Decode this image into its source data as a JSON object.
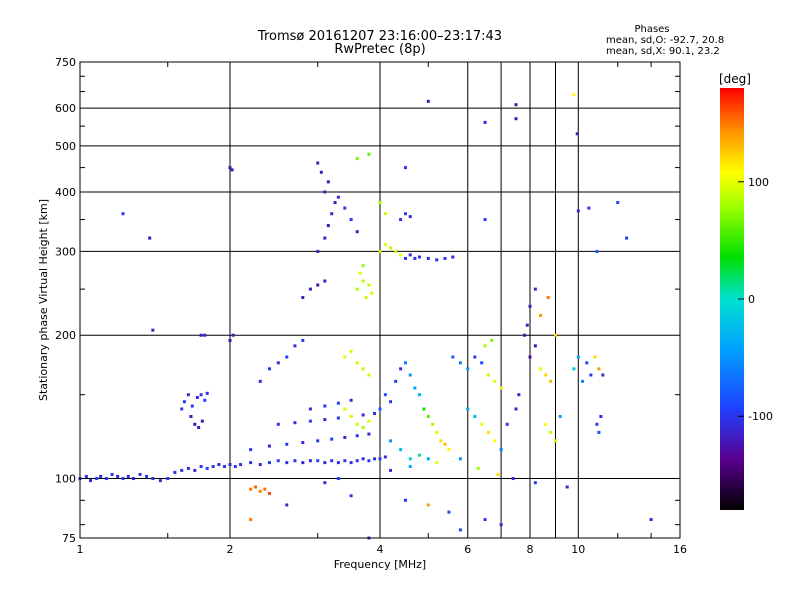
{
  "chart_data": {
    "type": "scatter",
    "title": "Tromsø 20161207 23:16:00–23:17:43",
    "subtitle": "RwPretec (8p)",
    "xlabel": "Frequency [MHz]",
    "ylabel": "Stationary phase Virtual Height [km]",
    "x_scale": "log",
    "y_scale": "log",
    "xlim": [
      1,
      16
    ],
    "ylim": [
      75,
      750
    ],
    "x_ticks": [
      1,
      2,
      4,
      6,
      8,
      10,
      16
    ],
    "x_tick_labels": [
      "1",
      "2",
      "4",
      "6",
      "8",
      "10",
      "16"
    ],
    "y_ticks": [
      75,
      100,
      200,
      300,
      400,
      500,
      600,
      750
    ],
    "y_tick_labels": [
      "75",
      "100",
      "200",
      "300",
      "400",
      "500",
      "600",
      "750"
    ],
    "grid": true,
    "phases_box": {
      "title": "Phases",
      "line1": "mean, sd,O: -92.7, 20.8",
      "line2": "mean, sd,X:  90.1, 23.2"
    },
    "colorbar": {
      "label": "[deg]",
      "range": [
        -180,
        180
      ],
      "ticks": [
        100,
        0,
        -100
      ],
      "tick_labels": [
        "100",
        "0",
        "-100"
      ]
    },
    "points": [
      {
        "x": 1.0,
        "y": 100,
        "c": -105
      },
      {
        "x": 1.03,
        "y": 101,
        "c": -100
      },
      {
        "x": 1.05,
        "y": 99,
        "c": -110
      },
      {
        "x": 1.08,
        "y": 100,
        "c": -95
      },
      {
        "x": 1.1,
        "y": 101,
        "c": -108
      },
      {
        "x": 1.13,
        "y": 100,
        "c": -100
      },
      {
        "x": 1.16,
        "y": 102,
        "c": -104
      },
      {
        "x": 1.19,
        "y": 101,
        "c": -112
      },
      {
        "x": 1.22,
        "y": 100,
        "c": -98
      },
      {
        "x": 1.25,
        "y": 101,
        "c": -102
      },
      {
        "x": 1.28,
        "y": 100,
        "c": -115
      },
      {
        "x": 1.32,
        "y": 102,
        "c": -100
      },
      {
        "x": 1.36,
        "y": 101,
        "c": -95
      },
      {
        "x": 1.4,
        "y": 100,
        "c": -106
      },
      {
        "x": 1.45,
        "y": 99,
        "c": -110
      },
      {
        "x": 1.5,
        "y": 100,
        "c": -100
      },
      {
        "x": 1.55,
        "y": 103,
        "c": -104
      },
      {
        "x": 1.6,
        "y": 104,
        "c": -98
      },
      {
        "x": 1.65,
        "y": 105,
        "c": -107
      },
      {
        "x": 1.7,
        "y": 104,
        "c": -112
      },
      {
        "x": 1.75,
        "y": 106,
        "c": -100
      },
      {
        "x": 1.8,
        "y": 105,
        "c": -95
      },
      {
        "x": 1.85,
        "y": 106,
        "c": -103
      },
      {
        "x": 1.9,
        "y": 107,
        "c": -110
      },
      {
        "x": 1.95,
        "y": 106,
        "c": -100
      },
      {
        "x": 2.0,
        "y": 107,
        "c": -105
      },
      {
        "x": 2.05,
        "y": 106,
        "c": -98
      },
      {
        "x": 2.1,
        "y": 107,
        "c": -108
      },
      {
        "x": 2.2,
        "y": 108,
        "c": -102
      },
      {
        "x": 2.3,
        "y": 107,
        "c": -110
      },
      {
        "x": 2.4,
        "y": 108,
        "c": -100
      },
      {
        "x": 2.5,
        "y": 109,
        "c": -95
      },
      {
        "x": 2.6,
        "y": 108,
        "c": -106
      },
      {
        "x": 2.7,
        "y": 109,
        "c": -100
      },
      {
        "x": 2.8,
        "y": 108,
        "c": -112
      },
      {
        "x": 2.9,
        "y": 109,
        "c": -104
      },
      {
        "x": 3.0,
        "y": 109,
        "c": -98
      },
      {
        "x": 3.1,
        "y": 108,
        "c": -110
      },
      {
        "x": 3.2,
        "y": 109,
        "c": -100
      },
      {
        "x": 3.3,
        "y": 108,
        "c": -105
      },
      {
        "x": 3.4,
        "y": 109,
        "c": -95
      },
      {
        "x": 3.5,
        "y": 108,
        "c": -108
      },
      {
        "x": 3.6,
        "y": 109,
        "c": -102
      },
      {
        "x": 3.7,
        "y": 110,
        "c": -110
      },
      {
        "x": 3.8,
        "y": 109,
        "c": -100
      },
      {
        "x": 3.9,
        "y": 110,
        "c": -106
      },
      {
        "x": 4.0,
        "y": 110,
        "c": -98
      },
      {
        "x": 4.1,
        "y": 111,
        "c": -104
      },
      {
        "x": 2.2,
        "y": 115,
        "c": -100
      },
      {
        "x": 2.4,
        "y": 117,
        "c": -105
      },
      {
        "x": 2.6,
        "y": 118,
        "c": -98
      },
      {
        "x": 2.8,
        "y": 119,
        "c": -110
      },
      {
        "x": 3.0,
        "y": 120,
        "c": -100
      },
      {
        "x": 3.2,
        "y": 121,
        "c": -95
      },
      {
        "x": 3.4,
        "y": 122,
        "c": -108
      },
      {
        "x": 3.6,
        "y": 123,
        "c": -102
      },
      {
        "x": 3.8,
        "y": 124,
        "c": -110
      },
      {
        "x": 2.5,
        "y": 130,
        "c": -100
      },
      {
        "x": 2.7,
        "y": 131,
        "c": -105
      },
      {
        "x": 2.9,
        "y": 132,
        "c": -98
      },
      {
        "x": 3.1,
        "y": 133,
        "c": -110
      },
      {
        "x": 3.3,
        "y": 134,
        "c": -100
      },
      {
        "x": 3.5,
        "y": 135,
        "c": -95
      },
      {
        "x": 3.7,
        "y": 136,
        "c": -108
      },
      {
        "x": 3.9,
        "y": 137,
        "c": -102
      },
      {
        "x": 2.9,
        "y": 140,
        "c": -104
      },
      {
        "x": 3.1,
        "y": 142,
        "c": -100
      },
      {
        "x": 3.3,
        "y": 144,
        "c": -98
      },
      {
        "x": 3.5,
        "y": 146,
        "c": -106
      },
      {
        "x": 1.6,
        "y": 140,
        "c": -100
      },
      {
        "x": 1.62,
        "y": 145,
        "c": -95
      },
      {
        "x": 1.65,
        "y": 150,
        "c": -105
      },
      {
        "x": 1.68,
        "y": 142,
        "c": -98
      },
      {
        "x": 1.72,
        "y": 148,
        "c": -110
      },
      {
        "x": 1.75,
        "y": 150,
        "c": -100
      },
      {
        "x": 1.78,
        "y": 146,
        "c": -95
      },
      {
        "x": 1.8,
        "y": 151,
        "c": -108
      },
      {
        "x": 1.67,
        "y": 135,
        "c": -120
      },
      {
        "x": 1.7,
        "y": 130,
        "c": -125
      },
      {
        "x": 1.73,
        "y": 128,
        "c": -118
      },
      {
        "x": 1.76,
        "y": 132,
        "c": -122
      },
      {
        "x": 1.75,
        "y": 200,
        "c": -120
      },
      {
        "x": 1.78,
        "y": 200,
        "c": -118
      },
      {
        "x": 2.0,
        "y": 195,
        "c": -125
      },
      {
        "x": 2.03,
        "y": 200,
        "c": -120
      },
      {
        "x": 2.0,
        "y": 450,
        "c": -125
      },
      {
        "x": 2.02,
        "y": 445,
        "c": -120
      },
      {
        "x": 1.22,
        "y": 360,
        "c": -100
      },
      {
        "x": 1.38,
        "y": 320,
        "c": -125
      },
      {
        "x": 1.4,
        "y": 205,
        "c": -120
      },
      {
        "x": 2.3,
        "y": 160,
        "c": -105
      },
      {
        "x": 2.4,
        "y": 170,
        "c": -100
      },
      {
        "x": 2.5,
        "y": 175,
        "c": -110
      },
      {
        "x": 2.6,
        "y": 180,
        "c": -95
      },
      {
        "x": 2.7,
        "y": 190,
        "c": -105
      },
      {
        "x": 2.8,
        "y": 195,
        "c": -100
      },
      {
        "x": 2.8,
        "y": 240,
        "c": -120
      },
      {
        "x": 2.9,
        "y": 250,
        "c": -115
      },
      {
        "x": 3.0,
        "y": 255,
        "c": -125
      },
      {
        "x": 3.1,
        "y": 260,
        "c": -120
      },
      {
        "x": 3.0,
        "y": 300,
        "c": -118
      },
      {
        "x": 3.1,
        "y": 320,
        "c": -122
      },
      {
        "x": 3.15,
        "y": 340,
        "c": -125
      },
      {
        "x": 3.2,
        "y": 360,
        "c": -110
      },
      {
        "x": 3.25,
        "y": 380,
        "c": -120
      },
      {
        "x": 3.1,
        "y": 400,
        "c": -115
      },
      {
        "x": 3.15,
        "y": 420,
        "c": -125
      },
      {
        "x": 3.05,
        "y": 440,
        "c": -120
      },
      {
        "x": 3.0,
        "y": 460,
        "c": -118
      },
      {
        "x": 3.3,
        "y": 390,
        "c": -110
      },
      {
        "x": 3.4,
        "y": 370,
        "c": -105
      },
      {
        "x": 3.5,
        "y": 350,
        "c": -100
      },
      {
        "x": 3.6,
        "y": 330,
        "c": -120
      },
      {
        "x": 3.6,
        "y": 250,
        "c": 80
      },
      {
        "x": 3.7,
        "y": 260,
        "c": 85
      },
      {
        "x": 3.8,
        "y": 255,
        "c": 90
      },
      {
        "x": 3.65,
        "y": 270,
        "c": 95
      },
      {
        "x": 3.75,
        "y": 240,
        "c": 88
      },
      {
        "x": 3.85,
        "y": 245,
        "c": 92
      },
      {
        "x": 3.7,
        "y": 280,
        "c": 75
      },
      {
        "x": 4.0,
        "y": 300,
        "c": 90
      },
      {
        "x": 4.1,
        "y": 310,
        "c": 95
      },
      {
        "x": 4.2,
        "y": 305,
        "c": 85
      },
      {
        "x": 4.3,
        "y": 300,
        "c": 90
      },
      {
        "x": 4.4,
        "y": 295,
        "c": 100
      },
      {
        "x": 4.5,
        "y": 290,
        "c": -100
      },
      {
        "x": 4.6,
        "y": 295,
        "c": -110
      },
      {
        "x": 4.7,
        "y": 290,
        "c": -105
      },
      {
        "x": 4.8,
        "y": 292,
        "c": -100
      },
      {
        "x": 5.0,
        "y": 290,
        "c": -110
      },
      {
        "x": 5.2,
        "y": 288,
        "c": -105
      },
      {
        "x": 5.4,
        "y": 290,
        "c": -100
      },
      {
        "x": 5.6,
        "y": 292,
        "c": -108
      },
      {
        "x": 4.4,
        "y": 350,
        "c": -105
      },
      {
        "x": 4.5,
        "y": 360,
        "c": -100
      },
      {
        "x": 4.6,
        "y": 355,
        "c": -110
      },
      {
        "x": 4.5,
        "y": 450,
        "c": -100
      },
      {
        "x": 3.8,
        "y": 480,
        "c": 60
      },
      {
        "x": 3.6,
        "y": 470,
        "c": 70
      },
      {
        "x": 4.0,
        "y": 380,
        "c": 80
      },
      {
        "x": 4.1,
        "y": 360,
        "c": 90
      },
      {
        "x": 3.4,
        "y": 180,
        "c": 100
      },
      {
        "x": 3.5,
        "y": 185,
        "c": 95
      },
      {
        "x": 3.6,
        "y": 175,
        "c": 90
      },
      {
        "x": 3.7,
        "y": 170,
        "c": 85
      },
      {
        "x": 3.8,
        "y": 165,
        "c": 92
      },
      {
        "x": 3.4,
        "y": 140,
        "c": 95
      },
      {
        "x": 3.5,
        "y": 135,
        "c": 100
      },
      {
        "x": 3.6,
        "y": 130,
        "c": 90
      },
      {
        "x": 3.7,
        "y": 128,
        "c": 85
      },
      {
        "x": 3.8,
        "y": 132,
        "c": 95
      },
      {
        "x": 4.0,
        "y": 140,
        "c": -80
      },
      {
        "x": 4.1,
        "y": 150,
        "c": -90
      },
      {
        "x": 4.2,
        "y": 145,
        "c": -100
      },
      {
        "x": 4.3,
        "y": 160,
        "c": -95
      },
      {
        "x": 4.4,
        "y": 170,
        "c": -110
      },
      {
        "x": 4.5,
        "y": 175,
        "c": -60
      },
      {
        "x": 4.6,
        "y": 165,
        "c": -50
      },
      {
        "x": 4.7,
        "y": 155,
        "c": -40
      },
      {
        "x": 4.8,
        "y": 150,
        "c": -30
      },
      {
        "x": 4.9,
        "y": 140,
        "c": 40
      },
      {
        "x": 5.0,
        "y": 135,
        "c": 60
      },
      {
        "x": 5.1,
        "y": 130,
        "c": 80
      },
      {
        "x": 5.2,
        "y": 125,
        "c": 100
      },
      {
        "x": 5.3,
        "y": 120,
        "c": 120
      },
      {
        "x": 5.4,
        "y": 118,
        "c": 130
      },
      {
        "x": 5.5,
        "y": 115,
        "c": 110
      },
      {
        "x": 4.2,
        "y": 120,
        "c": -50
      },
      {
        "x": 4.4,
        "y": 115,
        "c": -30
      },
      {
        "x": 4.6,
        "y": 110,
        "c": -10
      },
      {
        "x": 4.8,
        "y": 112,
        "c": 10
      },
      {
        "x": 5.0,
        "y": 110,
        "c": -40
      },
      {
        "x": 5.6,
        "y": 180,
        "c": -80
      },
      {
        "x": 5.8,
        "y": 175,
        "c": -60
      },
      {
        "x": 6.0,
        "y": 170,
        "c": -50
      },
      {
        "x": 6.2,
        "y": 180,
        "c": -100
      },
      {
        "x": 6.4,
        "y": 175,
        "c": -90
      },
      {
        "x": 6.6,
        "y": 165,
        "c": 90
      },
      {
        "x": 6.8,
        "y": 160,
        "c": 100
      },
      {
        "x": 7.0,
        "y": 155,
        "c": 110
      },
      {
        "x": 6.5,
        "y": 190,
        "c": 80
      },
      {
        "x": 6.7,
        "y": 195,
        "c": 70
      },
      {
        "x": 6.0,
        "y": 140,
        "c": -40
      },
      {
        "x": 6.2,
        "y": 135,
        "c": -30
      },
      {
        "x": 6.4,
        "y": 130,
        "c": 100
      },
      {
        "x": 6.6,
        "y": 125,
        "c": 120
      },
      {
        "x": 6.8,
        "y": 120,
        "c": 110
      },
      {
        "x": 7.0,
        "y": 115,
        "c": -60
      },
      {
        "x": 7.2,
        "y": 130,
        "c": -100
      },
      {
        "x": 7.5,
        "y": 140,
        "c": -110
      },
      {
        "x": 7.6,
        "y": 150,
        "c": -120
      },
      {
        "x": 7.8,
        "y": 200,
        "c": -125
      },
      {
        "x": 7.9,
        "y": 210,
        "c": -118
      },
      {
        "x": 8.0,
        "y": 230,
        "c": -120
      },
      {
        "x": 8.2,
        "y": 250,
        "c": -110
      },
      {
        "x": 8.0,
        "y": 180,
        "c": -130
      },
      {
        "x": 8.2,
        "y": 190,
        "c": -125
      },
      {
        "x": 8.4,
        "y": 170,
        "c": 100
      },
      {
        "x": 8.6,
        "y": 165,
        "c": 120
      },
      {
        "x": 8.8,
        "y": 160,
        "c": 130
      },
      {
        "x": 8.6,
        "y": 130,
        "c": 110
      },
      {
        "x": 8.8,
        "y": 125,
        "c": 90
      },
      {
        "x": 9.0,
        "y": 120,
        "c": 100
      },
      {
        "x": 9.2,
        "y": 135,
        "c": -40
      },
      {
        "x": 8.4,
        "y": 220,
        "c": 140
      },
      {
        "x": 8.7,
        "y": 240,
        "c": 150
      },
      {
        "x": 9.0,
        "y": 200,
        "c": 120
      },
      {
        "x": 9.8,
        "y": 170,
        "c": -20
      },
      {
        "x": 10.0,
        "y": 180,
        "c": -40
      },
      {
        "x": 10.2,
        "y": 160,
        "c": -60
      },
      {
        "x": 10.4,
        "y": 175,
        "c": -90
      },
      {
        "x": 10.6,
        "y": 165,
        "c": -100
      },
      {
        "x": 10.8,
        "y": 180,
        "c": 120
      },
      {
        "x": 11.0,
        "y": 170,
        "c": 140
      },
      {
        "x": 11.2,
        "y": 165,
        "c": -110
      },
      {
        "x": 10.9,
        "y": 130,
        "c": -100
      },
      {
        "x": 11.0,
        "y": 125,
        "c": -90
      },
      {
        "x": 11.1,
        "y": 135,
        "c": -110
      },
      {
        "x": 10.0,
        "y": 365,
        "c": -110
      },
      {
        "x": 10.5,
        "y": 370,
        "c": -100
      },
      {
        "x": 9.95,
        "y": 530,
        "c": -120
      },
      {
        "x": 9.8,
        "y": 640,
        "c": 110
      },
      {
        "x": 7.5,
        "y": 610,
        "c": -120
      },
      {
        "x": 7.5,
        "y": 570,
        "c": -125
      },
      {
        "x": 6.5,
        "y": 560,
        "c": -110
      },
      {
        "x": 5.0,
        "y": 620,
        "c": -125
      },
      {
        "x": 6.5,
        "y": 350,
        "c": -100
      },
      {
        "x": 12.0,
        "y": 380,
        "c": -90
      },
      {
        "x": 12.5,
        "y": 320,
        "c": -100
      },
      {
        "x": 10.9,
        "y": 300,
        "c": -80
      },
      {
        "x": 14.0,
        "y": 82,
        "c": -110
      },
      {
        "x": 2.2,
        "y": 95,
        "c": 150
      },
      {
        "x": 2.25,
        "y": 96,
        "c": 155
      },
      {
        "x": 2.3,
        "y": 94,
        "c": 148
      },
      {
        "x": 2.35,
        "y": 95,
        "c": 152
      },
      {
        "x": 2.4,
        "y": 93,
        "c": 160
      },
      {
        "x": 3.5,
        "y": 92,
        "c": -100
      },
      {
        "x": 4.5,
        "y": 90,
        "c": -95
      },
      {
        "x": 5.0,
        "y": 88,
        "c": 140
      },
      {
        "x": 5.5,
        "y": 85,
        "c": -90
      },
      {
        "x": 6.5,
        "y": 82,
        "c": -100
      },
      {
        "x": 7.0,
        "y": 80,
        "c": -110
      },
      {
        "x": 3.8,
        "y": 75,
        "c": -100
      },
      {
        "x": 5.8,
        "y": 78,
        "c": -90
      },
      {
        "x": 2.2,
        "y": 82,
        "c": 150
      },
      {
        "x": 2.6,
        "y": 88,
        "c": -110
      },
      {
        "x": 3.1,
        "y": 98,
        "c": -105
      },
      {
        "x": 3.3,
        "y": 100,
        "c": -100
      },
      {
        "x": 4.2,
        "y": 104,
        "c": -110
      },
      {
        "x": 4.6,
        "y": 106,
        "c": -40
      },
      {
        "x": 5.2,
        "y": 108,
        "c": 100
      },
      {
        "x": 5.8,
        "y": 110,
        "c": -50
      },
      {
        "x": 6.3,
        "y": 105,
        "c": 80
      },
      {
        "x": 6.9,
        "y": 102,
        "c": 120
      },
      {
        "x": 7.4,
        "y": 100,
        "c": -110
      },
      {
        "x": 8.2,
        "y": 98,
        "c": -100
      },
      {
        "x": 9.5,
        "y": 96,
        "c": -110
      }
    ]
  }
}
